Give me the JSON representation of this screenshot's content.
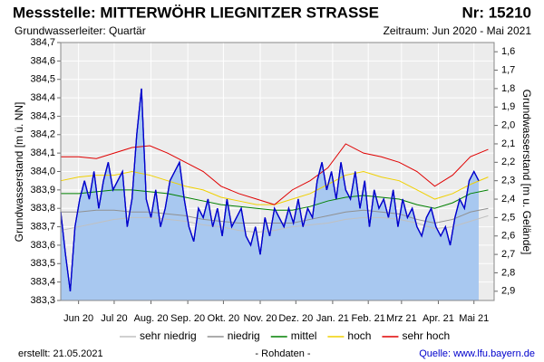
{
  "chart_data": {
    "type": "line",
    "title": "Messstelle: MITTERWÖHR LIEGNITZER STRASSE",
    "station_number": "Nr: 15210",
    "subtitle": "Grundwasserleiter: Quartär",
    "period": "Zeitraum: Jun 2020 - Mai 2021",
    "ylabel": "Grundwasserstand [m ü. NN]",
    "y2label": "Grundwasserstand [m u. Gelände]",
    "created": "erstellt:  21.05.2021",
    "note": "- Rohdaten -",
    "source": "Quelle: www.lfu.bayern.de",
    "grid": true,
    "legend": "bottom",
    "xlim": [
      0,
      365
    ],
    "xticks": [
      {
        "value": 15,
        "label": "Jun 20"
      },
      {
        "value": 45,
        "label": "Jul 20"
      },
      {
        "value": 76,
        "label": "Aug. 20"
      },
      {
        "value": 107,
        "label": "Sep. 20"
      },
      {
        "value": 137,
        "label": "Okt. 20"
      },
      {
        "value": 168,
        "label": "Nov. 20"
      },
      {
        "value": 198,
        "label": "Dez. 20"
      },
      {
        "value": 229,
        "label": "Jan. 21"
      },
      {
        "value": 259,
        "label": "Feb. 21"
      },
      {
        "value": 287,
        "label": "Mrz 21"
      },
      {
        "value": 318,
        "label": "Apr. 21"
      },
      {
        "value": 348,
        "label": "Mai 21"
      }
    ],
    "ylim": [
      383.3,
      384.7
    ],
    "yticks": [
      {
        "value": 383.3,
        "label": "383,3"
      },
      {
        "value": 383.4,
        "label": "383,4"
      },
      {
        "value": 383.5,
        "label": "383,5"
      },
      {
        "value": 383.6,
        "label": "383,6"
      },
      {
        "value": 383.7,
        "label": "383,7"
      },
      {
        "value": 383.8,
        "label": "383,8"
      },
      {
        "value": 383.9,
        "label": "383,9"
      },
      {
        "value": 384.0,
        "label": "384,0"
      },
      {
        "value": 384.1,
        "label": "384,1"
      },
      {
        "value": 384.2,
        "label": "384,2"
      },
      {
        "value": 384.3,
        "label": "384,3"
      },
      {
        "value": 384.4,
        "label": "384,4"
      },
      {
        "value": 384.5,
        "label": "384,5"
      },
      {
        "value": 384.6,
        "label": "384,6"
      },
      {
        "value": 384.7,
        "label": "384,7"
      }
    ],
    "y2lim": [
      2.95,
      1.55
    ],
    "y2ticks": [
      {
        "value": 1.6,
        "label": "1,6"
      },
      {
        "value": 1.7,
        "label": "1,7"
      },
      {
        "value": 1.8,
        "label": "1,8"
      },
      {
        "value": 1.9,
        "label": "1,9"
      },
      {
        "value": 2.0,
        "label": "2,0"
      },
      {
        "value": 2.1,
        "label": "2,1"
      },
      {
        "value": 2.2,
        "label": "2,2"
      },
      {
        "value": 2.3,
        "label": "2,3"
      },
      {
        "value": 2.4,
        "label": "2,4"
      },
      {
        "value": 2.5,
        "label": "2,5"
      },
      {
        "value": 2.6,
        "label": "2,6"
      },
      {
        "value": 2.7,
        "label": "2,7"
      },
      {
        "value": 2.8,
        "label": "2,8"
      },
      {
        "value": 2.9,
        "label": "2,9"
      }
    ],
    "series": [
      {
        "color": "#0000cc",
        "fill": "#a8c8f0",
        "x": [
          0,
          4,
          8,
          12,
          16,
          20,
          24,
          28,
          32,
          36,
          40,
          44,
          48,
          52,
          56,
          60,
          64,
          68,
          72,
          76,
          80,
          84,
          88,
          92,
          96,
          100,
          104,
          108,
          112,
          116,
          120,
          124,
          128,
          132,
          136,
          140,
          144,
          148,
          152,
          156,
          160,
          164,
          168,
          172,
          176,
          180,
          184,
          188,
          192,
          196,
          200,
          204,
          208,
          212,
          216,
          220,
          224,
          228,
          232,
          236,
          240,
          244,
          248,
          252,
          256,
          260,
          264,
          268,
          272,
          276,
          280,
          284,
          288,
          292,
          296,
          300,
          304,
          308,
          312,
          316,
          320,
          324,
          328,
          332,
          336,
          340,
          344,
          348,
          352
        ],
        "values": [
          383.78,
          383.55,
          383.35,
          383.7,
          383.85,
          383.95,
          383.85,
          384.0,
          383.8,
          383.95,
          384.05,
          383.9,
          383.95,
          384.0,
          383.7,
          383.85,
          384.2,
          384.45,
          383.85,
          383.75,
          383.9,
          383.7,
          383.8,
          383.95,
          384.0,
          384.05,
          383.85,
          383.7,
          383.62,
          383.8,
          383.75,
          383.85,
          383.7,
          383.8,
          383.65,
          383.85,
          383.7,
          383.75,
          383.8,
          383.65,
          383.6,
          383.7,
          383.55,
          383.75,
          383.65,
          383.8,
          383.75,
          383.7,
          383.8,
          383.72,
          383.85,
          383.7,
          383.8,
          383.75,
          383.95,
          384.05,
          383.9,
          384.0,
          383.85,
          384.05,
          383.9,
          383.85,
          384.0,
          383.8,
          383.95,
          383.7,
          383.9,
          383.8,
          383.85,
          383.75,
          383.9,
          383.7,
          383.85,
          383.75,
          383.8,
          383.7,
          383.65,
          383.75,
          383.8,
          383.7,
          383.65,
          383.7,
          383.6,
          383.75,
          383.85,
          383.8,
          383.95,
          384.0,
          383.95
        ]
      },
      {
        "name": "sehr niedrig",
        "color": "#c0c0c0",
        "x": [
          0,
          15,
          30,
          45,
          60,
          75,
          90,
          105,
          120,
          135,
          150,
          165,
          180,
          195,
          210,
          225,
          240,
          255,
          270,
          285,
          300,
          315,
          330,
          345,
          360
        ],
        "values": [
          383.68,
          383.7,
          383.72,
          383.74,
          383.75,
          383.75,
          383.74,
          383.73,
          383.71,
          383.7,
          383.68,
          383.67,
          383.68,
          383.7,
          383.71,
          383.72,
          383.74,
          383.75,
          383.75,
          383.74,
          383.72,
          383.69,
          383.7,
          383.73,
          383.76
        ]
      },
      {
        "name": "niedrig",
        "color": "#909090",
        "x": [
          0,
          15,
          30,
          45,
          60,
          75,
          90,
          105,
          120,
          135,
          150,
          165,
          180,
          195,
          210,
          225,
          240,
          255,
          270,
          285,
          300,
          315,
          330,
          345,
          360
        ],
        "values": [
          383.78,
          383.78,
          383.79,
          383.79,
          383.78,
          383.78,
          383.77,
          383.76,
          383.74,
          383.73,
          383.72,
          383.72,
          383.72,
          383.72,
          383.74,
          383.76,
          383.78,
          383.79,
          383.78,
          383.77,
          383.74,
          383.72,
          383.74,
          383.78,
          383.8
        ]
      },
      {
        "name": "mittel",
        "color": "#008000",
        "x": [
          0,
          15,
          30,
          45,
          60,
          75,
          90,
          105,
          120,
          135,
          150,
          165,
          180,
          195,
          210,
          225,
          240,
          255,
          270,
          285,
          300,
          315,
          330,
          345,
          360
        ],
        "values": [
          383.88,
          383.88,
          383.89,
          383.9,
          383.9,
          383.89,
          383.88,
          383.86,
          383.84,
          383.82,
          383.81,
          383.8,
          383.79,
          383.79,
          383.81,
          383.84,
          383.86,
          383.87,
          383.86,
          383.85,
          383.82,
          383.8,
          383.83,
          383.88,
          383.9
        ]
      },
      {
        "name": "hoch",
        "color": "#f0d000",
        "x": [
          0,
          15,
          30,
          45,
          60,
          75,
          90,
          105,
          120,
          135,
          150,
          165,
          180,
          195,
          210,
          225,
          240,
          255,
          270,
          285,
          300,
          315,
          330,
          345,
          360
        ],
        "values": [
          383.95,
          383.97,
          383.98,
          383.98,
          384.0,
          383.98,
          383.95,
          383.92,
          383.9,
          383.86,
          383.84,
          383.82,
          383.82,
          383.85,
          383.88,
          383.93,
          383.98,
          384.0,
          383.97,
          383.95,
          383.9,
          383.85,
          383.88,
          383.93,
          383.97
        ]
      },
      {
        "name": "sehr hoch",
        "color": "#e00000",
        "x": [
          0,
          15,
          30,
          45,
          60,
          75,
          90,
          105,
          120,
          135,
          150,
          165,
          180,
          195,
          210,
          225,
          240,
          255,
          270,
          285,
          300,
          315,
          330,
          345,
          360
        ],
        "values": [
          384.08,
          384.08,
          384.07,
          384.1,
          384.13,
          384.14,
          384.1,
          384.05,
          384.0,
          383.92,
          383.88,
          383.85,
          383.82,
          383.9,
          383.95,
          384.02,
          384.15,
          384.1,
          384.08,
          384.05,
          384.0,
          383.92,
          383.98,
          384.08,
          384.12
        ]
      }
    ]
  }
}
